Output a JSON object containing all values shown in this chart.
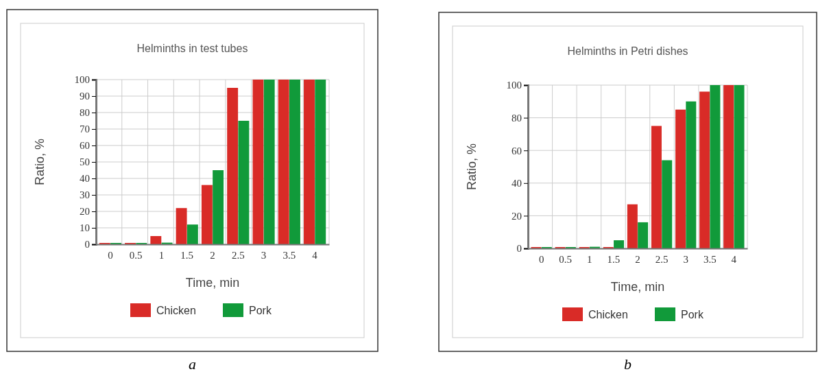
{
  "chart_data": [
    {
      "type": "bar",
      "title": "Helminths in test tubes",
      "xlabel": "Time, min",
      "ylabel": "Ratio, %",
      "categories": [
        "0",
        "0.5",
        "1",
        "1.5",
        "2",
        "2.5",
        "3",
        "3.5",
        "4"
      ],
      "series": [
        {
          "name": "Chicken",
          "color": "#d92b27",
          "values": [
            0,
            0,
            5,
            22,
            36,
            95,
            100,
            100,
            100
          ]
        },
        {
          "name": "Pork",
          "color": "#119a3a",
          "values": [
            0,
            0,
            1,
            12,
            45,
            75,
            100,
            100,
            100
          ]
        }
      ],
      "ylim": [
        0,
        100
      ],
      "yticks": [
        0,
        10,
        20,
        30,
        40,
        50,
        60,
        70,
        80,
        90,
        100
      ],
      "grid": true,
      "legend": "bottom",
      "annotations": [
        "a"
      ]
    },
    {
      "type": "bar",
      "title": "Helminths in Petri dishes",
      "xlabel": "Time, min",
      "ylabel": "Ratio, %",
      "categories": [
        "0",
        "0.5",
        "1",
        "1.5",
        "2",
        "2.5",
        "3",
        "3.5",
        "4"
      ],
      "series": [
        {
          "name": "Chicken",
          "color": "#d92b27",
          "values": [
            0,
            0,
            0,
            0,
            27,
            75,
            85,
            96,
            100
          ]
        },
        {
          "name": "Pork",
          "color": "#119a3a",
          "values": [
            0,
            0,
            1,
            5,
            16,
            54,
            90,
            100,
            100
          ]
        }
      ],
      "ylim": [
        0,
        100
      ],
      "yticks": [
        0,
        20,
        40,
        60,
        80,
        100
      ],
      "grid": true,
      "legend": "bottom",
      "annotations": [
        "b"
      ]
    }
  ]
}
